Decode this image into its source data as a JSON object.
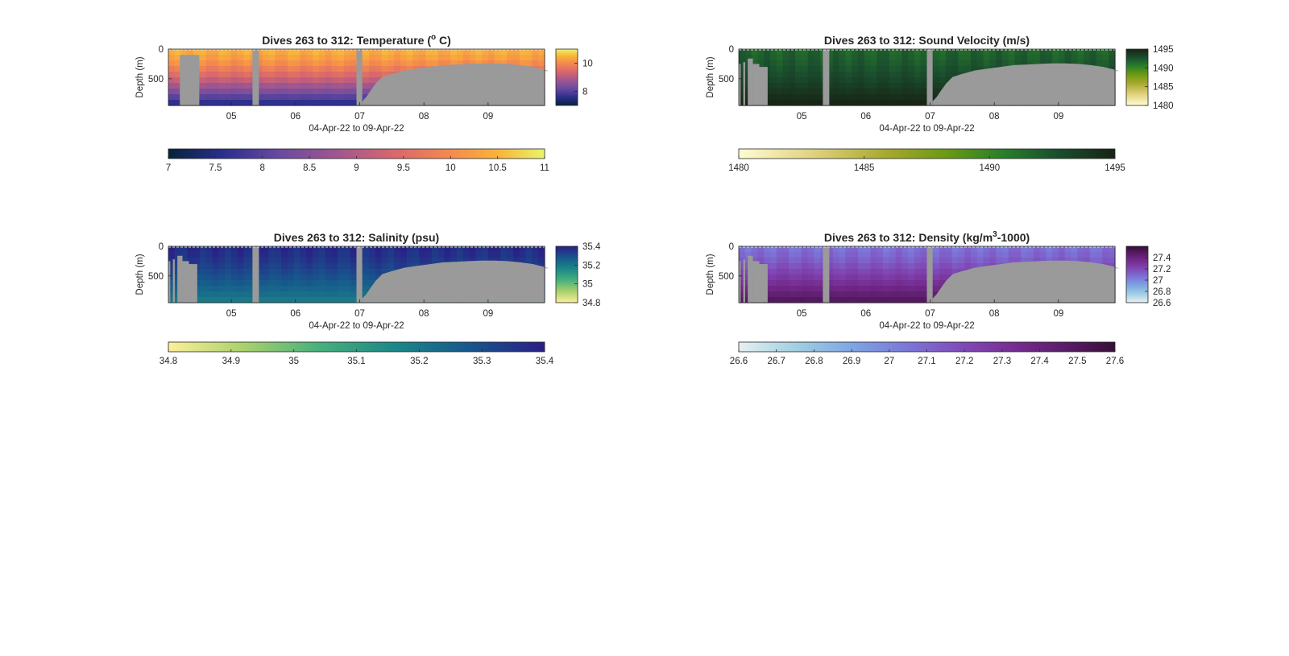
{
  "figure": {
    "background": "#ffffff",
    "land_color": "#9a9a9a"
  },
  "chart_data": [
    {
      "type": "heatmap",
      "title_main": "Dives 263 to 312: Temperature (",
      "title_sup": "o",
      "title_end": " C)",
      "ylabel": "Depth (m)",
      "xlabel": "04-Apr-22 to 09-Apr-22",
      "x_ticks": [
        "05",
        "06",
        "07",
        "08",
        "09"
      ],
      "x_range_days": [
        4.1,
        9.95
      ],
      "y_ticks": [
        "0",
        "500"
      ],
      "ylim": [
        0,
        950
      ],
      "colormap": "thermal",
      "color_range": [
        7,
        11
      ],
      "side_colorbar_ticks": [
        "10",
        "8"
      ],
      "horizontal_colorbar_ticks": [
        "7",
        "7.5",
        "8",
        "8.5",
        "9",
        "9.5",
        "10",
        "10.5",
        "11"
      ],
      "surface_value": 10.3,
      "deep_value": 7.6,
      "max_depth_profile": [
        950,
        950,
        780,
        800,
        810,
        830,
        850,
        950,
        950,
        950,
        950,
        950,
        950,
        950,
        950,
        950,
        950,
        950,
        950,
        950,
        950,
        950,
        950,
        950,
        950,
        950,
        950,
        950,
        950,
        950,
        950,
        950,
        950,
        950,
        950,
        950,
        950,
        950,
        950,
        950,
        950,
        950,
        950,
        950,
        950,
        950,
        950,
        950,
        950,
        950,
        950,
        950,
        950,
        950,
        950,
        950,
        950,
        950,
        950,
        950,
        950,
        950,
        950,
        950,
        950,
        950,
        950,
        950,
        950,
        950,
        950,
        950,
        950,
        950,
        950,
        950,
        950,
        950,
        950,
        950,
        950,
        950,
        950,
        950,
        950,
        950,
        950,
        950,
        950,
        950,
        950,
        950,
        950,
        950,
        950,
        950,
        950,
        950,
        950,
        950,
        950,
        950,
        950,
        950,
        950,
        950,
        950,
        950,
        950,
        950,
        950,
        950,
        950,
        950,
        950,
        950,
        950,
        950,
        950,
        950,
        950,
        950,
        950,
        950,
        950,
        950,
        950,
        950,
        950,
        950,
        950,
        950,
        950,
        950,
        950,
        950,
        950,
        950,
        950,
        950,
        950,
        950,
        950,
        950,
        950,
        950,
        950,
        950,
        950,
        950,
        950,
        950,
        950,
        950,
        950,
        950,
        950,
        950,
        950,
        950,
        950,
        950,
        950,
        950,
        950,
        950,
        950,
        950,
        950,
        950,
        950,
        950,
        950,
        950,
        950,
        950,
        950,
        950,
        950,
        950,
        950,
        950,
        950,
        950,
        950,
        950,
        950,
        950,
        950,
        950,
        950,
        950,
        950,
        950,
        950,
        950,
        950,
        950,
        950,
        950,
        950,
        950,
        950,
        950,
        950,
        950,
        950,
        950,
        950,
        950,
        950,
        950,
        950,
        950,
        950,
        950,
        950,
        950,
        950,
        950,
        950,
        950,
        950,
        950,
        950,
        950,
        950,
        950,
        950,
        950,
        950,
        950,
        950,
        950,
        950,
        950,
        950,
        950,
        950,
        950,
        950,
        950,
        950,
        950,
        950,
        950,
        950,
        950,
        950,
        950,
        950,
        950,
        950,
        950,
        950,
        950,
        950,
        950,
        950,
        950,
        950,
        950,
        950,
        950,
        950,
        950,
        950,
        950,
        950
      ],
      "gaps_days": [
        [
          5.33,
          5.43
        ],
        [
          6.95,
          7.04
        ]
      ],
      "land_start_days": [
        4.25,
        4.58
      ],
      "coverage_profile": [
        [
          7.04,
          880
        ],
        [
          7.1,
          810
        ],
        [
          7.17,
          700
        ],
        [
          7.25,
          580
        ],
        [
          7.35,
          470
        ],
        [
          7.5,
          420
        ],
        [
          7.7,
          360
        ],
        [
          7.9,
          330
        ],
        [
          8.1,
          300
        ],
        [
          8.3,
          270
        ],
        [
          8.5,
          260
        ],
        [
          8.7,
          250
        ],
        [
          8.9,
          240
        ],
        [
          9.1,
          240
        ],
        [
          9.3,
          250
        ],
        [
          9.5,
          270
        ],
        [
          9.7,
          300
        ],
        [
          9.85,
          340
        ],
        [
          9.95,
          370
        ]
      ]
    },
    {
      "type": "heatmap",
      "title_main": "Dives 263 to 312: Sound Velocity (m/s)",
      "ylabel": "Depth (m)",
      "xlabel": "04-Apr-22 to 09-Apr-22",
      "x_ticks": [
        "05",
        "06",
        "07",
        "08",
        "09"
      ],
      "y_ticks": [
        "0",
        "500"
      ],
      "colormap": "speed",
      "color_range": [
        1480,
        1495
      ],
      "side_colorbar_ticks": [
        "1495",
        "1490",
        "1485",
        "1480"
      ],
      "horizontal_colorbar_ticks": [
        "1480",
        "1485",
        "1490",
        "1495"
      ],
      "surface_value": 1491.5,
      "deep_value": 1494.8,
      "land_start_days": [
        4.1,
        4.2,
        4.33,
        4.5
      ],
      "gaps_days": [
        [
          5.33,
          5.43
        ],
        [
          6.95,
          7.04
        ]
      ],
      "coverage_profile": [
        [
          7.04,
          880
        ],
        [
          7.1,
          810
        ],
        [
          7.17,
          700
        ],
        [
          7.25,
          580
        ],
        [
          7.35,
          470
        ],
        [
          7.5,
          420
        ],
        [
          7.7,
          360
        ],
        [
          7.9,
          330
        ],
        [
          8.1,
          300
        ],
        [
          8.3,
          270
        ],
        [
          8.5,
          260
        ],
        [
          8.7,
          250
        ],
        [
          8.9,
          240
        ],
        [
          9.1,
          240
        ],
        [
          9.3,
          250
        ],
        [
          9.5,
          270
        ],
        [
          9.7,
          300
        ],
        [
          9.85,
          340
        ],
        [
          9.95,
          370
        ]
      ]
    },
    {
      "type": "heatmap",
      "title_main": "Dives 263 to 312: Salinity (psu)",
      "ylabel": "Depth (m)",
      "xlabel": "04-Apr-22 to 09-Apr-22",
      "x_ticks": [
        "05",
        "06",
        "07",
        "08",
        "09"
      ],
      "y_ticks": [
        "0",
        "500"
      ],
      "colormap": "haline",
      "color_range": [
        34.8,
        35.4
      ],
      "side_colorbar_ticks": [
        "35.4",
        "35.2",
        "35",
        "34.8"
      ],
      "horizontal_colorbar_ticks": [
        "34.8",
        "34.9",
        "35",
        "35.1",
        "35.2",
        "35.3",
        "35.4"
      ],
      "surface_value": 35.37,
      "deep_value": 35.2,
      "land_start_days": [
        4.1,
        4.2,
        4.33,
        4.5
      ],
      "gaps_days": [
        [
          5.33,
          5.43
        ],
        [
          6.95,
          7.04
        ]
      ],
      "coverage_profile": [
        [
          7.04,
          880
        ],
        [
          7.1,
          810
        ],
        [
          7.17,
          700
        ],
        [
          7.25,
          580
        ],
        [
          7.35,
          470
        ],
        [
          7.5,
          420
        ],
        [
          7.7,
          360
        ],
        [
          7.9,
          330
        ],
        [
          8.1,
          300
        ],
        [
          8.3,
          270
        ],
        [
          8.5,
          260
        ],
        [
          8.7,
          250
        ],
        [
          8.9,
          240
        ],
        [
          9.1,
          240
        ],
        [
          9.3,
          250
        ],
        [
          9.5,
          270
        ],
        [
          9.7,
          300
        ],
        [
          9.85,
          340
        ],
        [
          9.95,
          370
        ]
      ]
    },
    {
      "type": "heatmap",
      "title_main": "Dives 263 to 312: Density (kg/m",
      "title_sup": "3",
      "title_end": "-1000)",
      "ylabel": "Depth (m)",
      "xlabel": "04-Apr-22 to 09-Apr-22",
      "x_ticks": [
        "05",
        "06",
        "07",
        "08",
        "09"
      ],
      "y_ticks": [
        "0",
        "500"
      ],
      "colormap": "dense",
      "color_range": [
        26.6,
        27.6
      ],
      "side_colorbar_ticks": [
        "27.4",
        "27.2",
        "27",
        "26.8",
        "26.6"
      ],
      "horizontal_colorbar_ticks": [
        "26.6",
        "26.7",
        "26.8",
        "26.9",
        "27",
        "27.1",
        "27.2",
        "27.3",
        "27.4",
        "27.5",
        "27.6"
      ],
      "surface_value": 27.05,
      "deep_value": 27.45,
      "land_start_days": [
        4.1,
        4.2,
        4.33,
        4.5
      ],
      "gaps_days": [
        [
          5.33,
          5.43
        ],
        [
          6.95,
          7.04
        ]
      ],
      "coverage_profile": [
        [
          7.04,
          880
        ],
        [
          7.1,
          810
        ],
        [
          7.17,
          700
        ],
        [
          7.25,
          580
        ],
        [
          7.35,
          470
        ],
        [
          7.5,
          420
        ],
        [
          7.7,
          360
        ],
        [
          7.9,
          330
        ],
        [
          8.1,
          300
        ],
        [
          8.3,
          270
        ],
        [
          8.5,
          260
        ],
        [
          8.7,
          250
        ],
        [
          8.9,
          240
        ],
        [
          9.1,
          240
        ],
        [
          9.3,
          250
        ],
        [
          9.5,
          270
        ],
        [
          9.7,
          300
        ],
        [
          9.85,
          340
        ],
        [
          9.95,
          370
        ]
      ]
    }
  ]
}
